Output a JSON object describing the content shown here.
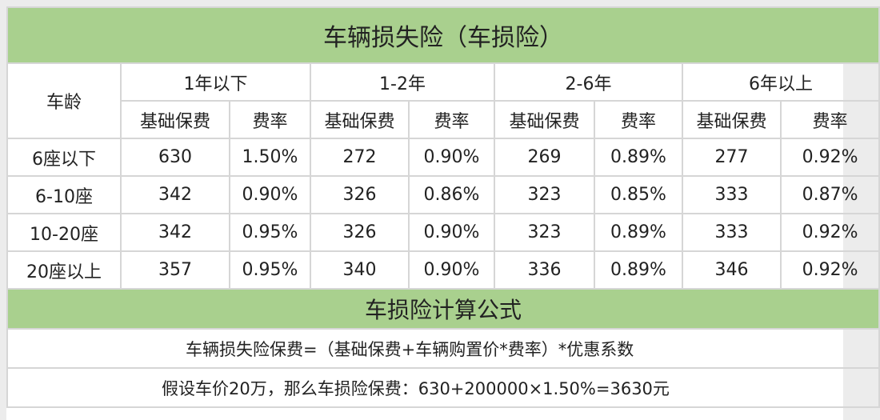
{
  "title": "车辆损失险（车损险）",
  "header": {
    "row_label": "车龄",
    "groups": [
      "1年以下",
      "1-2年",
      "2-6年",
      "6年以上"
    ],
    "subheaders": [
      "基础保费",
      "费率",
      "基础保费",
      "费率",
      "基础保费",
      "费率",
      "基础保费",
      "费率"
    ]
  },
  "rows": [
    {
      "label": "6座以下",
      "cells": [
        "630",
        "1.50%",
        "272",
        "0.90%",
        "269",
        "0.89%",
        "277",
        "0.92%"
      ]
    },
    {
      "label": "6-10座",
      "cells": [
        "342",
        "0.90%",
        "326",
        "0.86%",
        "323",
        "0.85%",
        "333",
        "0.87%"
      ]
    },
    {
      "label": "10-20座",
      "cells": [
        "342",
        "0.95%",
        "326",
        "0.90%",
        "323",
        "0.89%",
        "333",
        "0.92%"
      ]
    },
    {
      "label": "20座以上",
      "cells": [
        "357",
        "0.95%",
        "340",
        "0.90%",
        "336",
        "0.89%",
        "346",
        "0.92%"
      ]
    }
  ],
  "formula_title": "车损险计算公式",
  "formula": "车辆损失险保费=（基础保费+车辆购置价*费率）*优惠系数",
  "example": "假设车价20万，那么车损险保费：630+200000×1.50%=3630元"
}
